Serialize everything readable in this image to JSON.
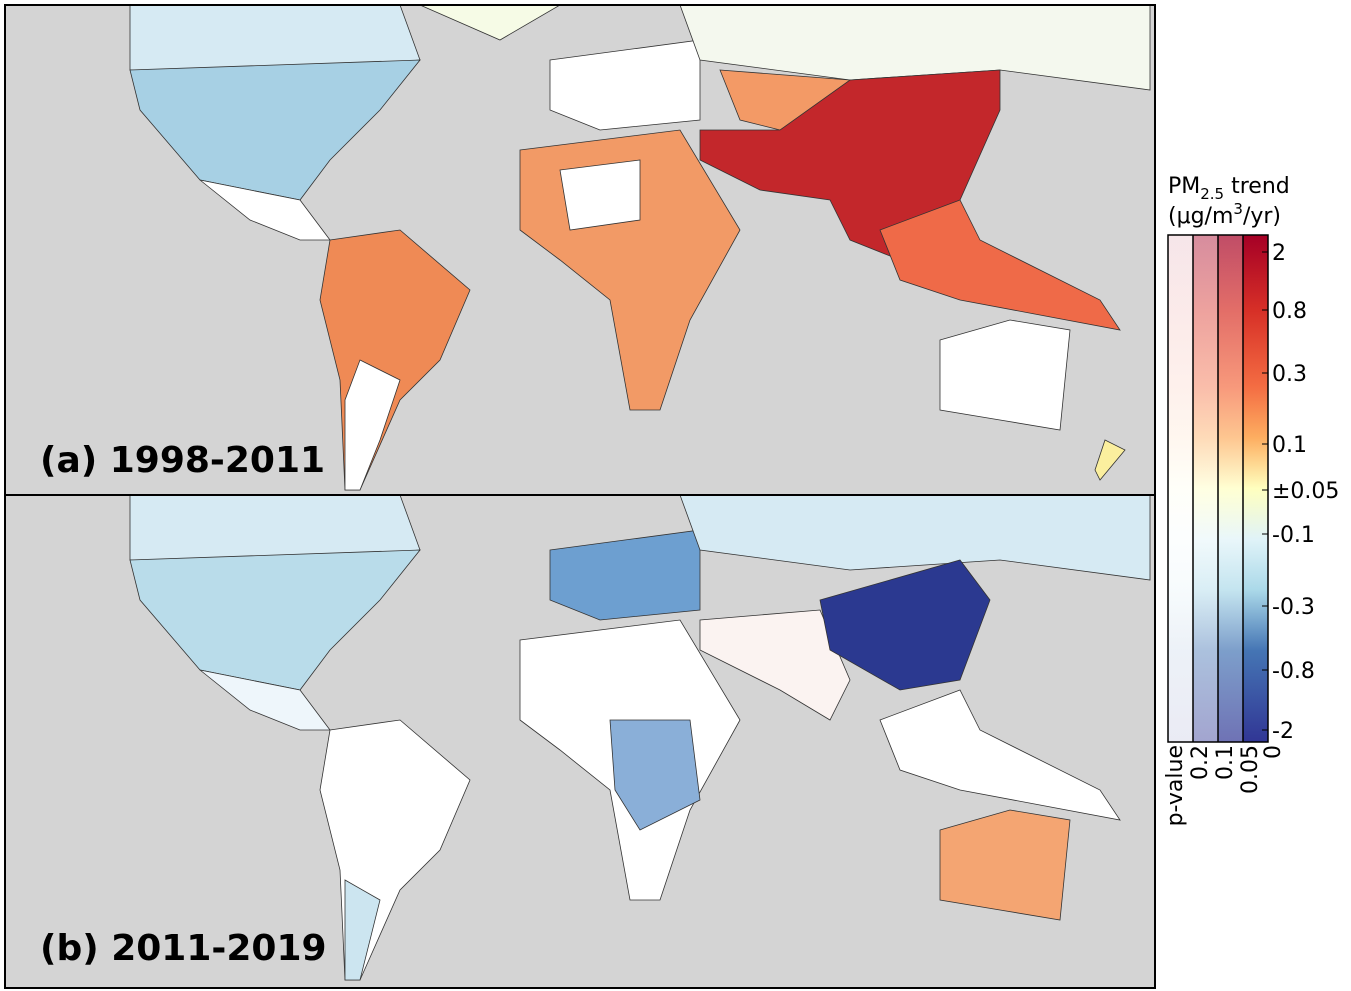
{
  "panels": [
    {
      "label": "(a) 1998-2011"
    },
    {
      "label": "(b) 2011-2019"
    }
  ],
  "colorbar": {
    "title": {
      "pm": "PM",
      "sub": "2.5",
      "rest": " trend",
      "unit": "(μg/m",
      "sup": "3",
      "unit_end": "/yr)"
    },
    "ticks": [
      "2",
      "0.8",
      "0.3",
      "0.1",
      "±0.05",
      "-0.1",
      "-0.3",
      "-0.8",
      "-2"
    ]
  },
  "p_value": {
    "label": "p-value",
    "ticks": [
      "0.2",
      "0.1",
      "0.05",
      "0"
    ]
  }
}
